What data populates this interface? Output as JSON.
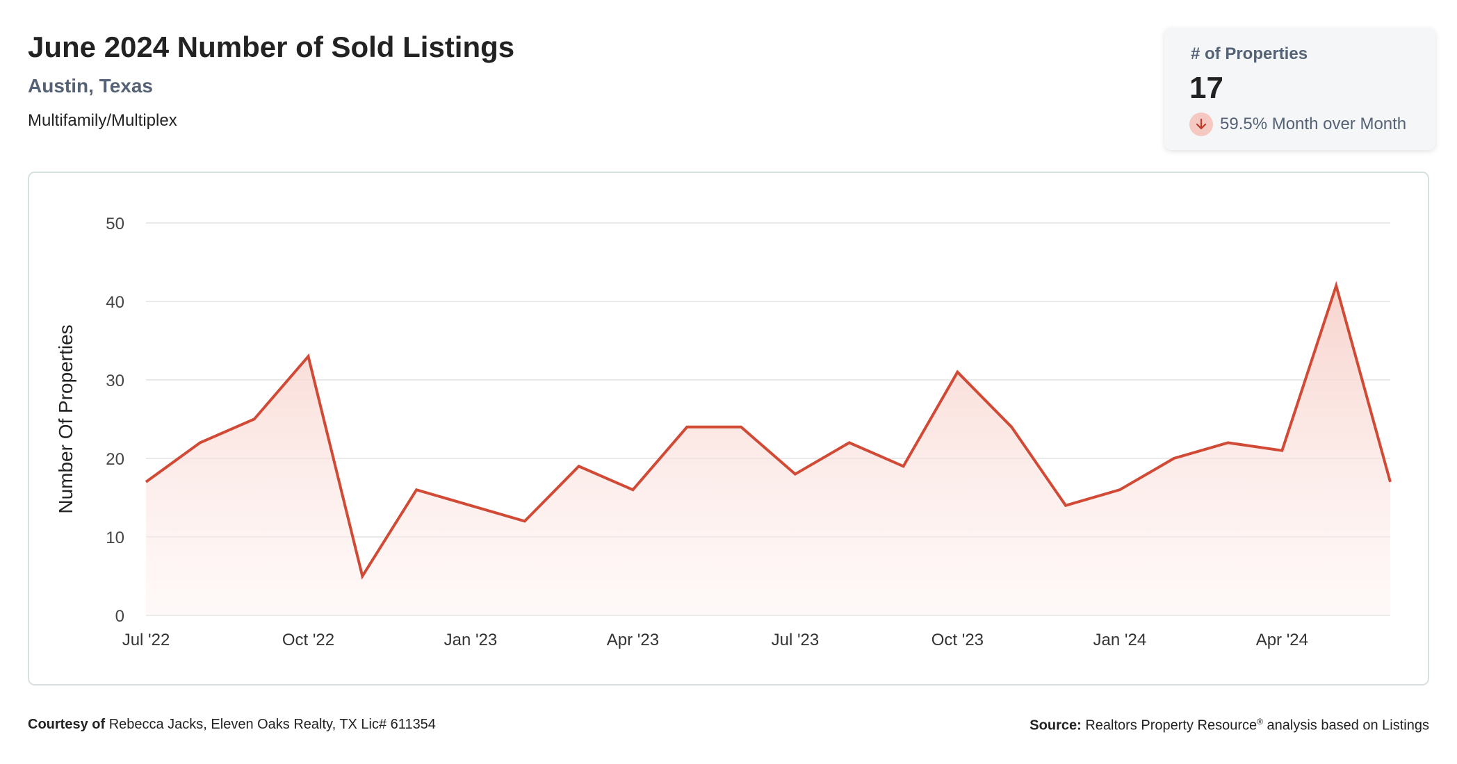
{
  "header": {
    "title": "June 2024 Number of Sold Listings",
    "location": "Austin, Texas",
    "category": "Multifamily/Multiplex"
  },
  "kpi": {
    "label": "# of Properties",
    "value": "17",
    "change_text": "59.5% Month over Month",
    "direction": "down",
    "icon": "arrow-down-icon"
  },
  "colors": {
    "line": "#d14a36",
    "fill": "#f9d9d4",
    "grid": "#e3e3e3",
    "accent_text": "#556275"
  },
  "chart_data": {
    "type": "area",
    "ylabel": "Number Of Properties",
    "xlabel": "",
    "ylim": [
      0,
      50
    ],
    "yticks": [
      0,
      10,
      20,
      30,
      40,
      50
    ],
    "grid": true,
    "x": [
      "Jul '22",
      "Aug '22",
      "Sep '22",
      "Oct '22",
      "Nov '22",
      "Dec '22",
      "Jan '23",
      "Feb '23",
      "Mar '23",
      "Apr '23",
      "May '23",
      "Jun '23",
      "Jul '23",
      "Aug '23",
      "Sep '23",
      "Oct '23",
      "Nov '23",
      "Dec '23",
      "Jan '24",
      "Feb '24",
      "Mar '24",
      "Apr '24",
      "May '24",
      "Jun '24"
    ],
    "x_tick_labels": [
      "Jul '22",
      "Oct '22",
      "Jan '23",
      "Apr '23",
      "Jul '23",
      "Oct '23",
      "Jan '24",
      "Apr '24"
    ],
    "series": [
      {
        "values": [
          17,
          22,
          25,
          33,
          5,
          16,
          14,
          12,
          19,
          16,
          24,
          24,
          18,
          22,
          19,
          31,
          24,
          14,
          16,
          20,
          22,
          21,
          42,
          17
        ]
      }
    ]
  },
  "footer": {
    "courtesy_label": "Courtesy of",
    "courtesy_text": "Rebecca Jacks, Eleven Oaks Realty, TX Lic# 611354",
    "source_label": "Source:",
    "source_name": "Realtors Property Resource",
    "source_mark": "®",
    "source_text": "analysis based on Listings"
  }
}
